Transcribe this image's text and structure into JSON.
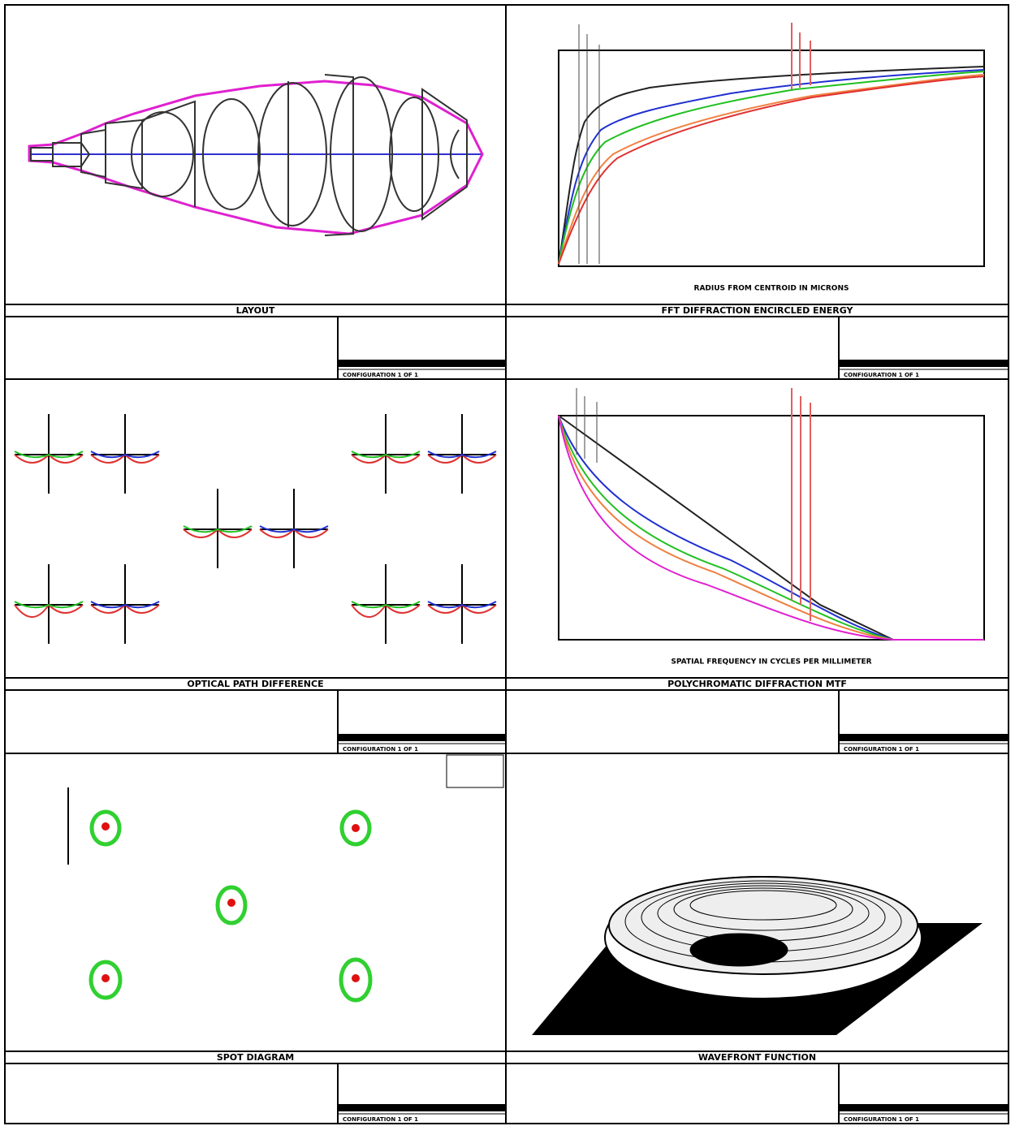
{
  "panels": [
    {
      "title": "LAYOUT",
      "config": "CONFIGURATION 1 OF 1"
    },
    {
      "title": "FFT DIFFRACTION ENCIRCLED ENERGY",
      "xlabel": "RADIUS FROM CENTROID IN MICRONS",
      "config": "CONFIGURATION 1 OF 1"
    },
    {
      "title": "OPTICAL PATH DIFFERENCE",
      "config": "CONFIGURATION 1 OF 1"
    },
    {
      "title": "POLYCHROMATIC DIFFRACTION MTF",
      "xlabel": "SPATIAL FREQUENCY IN CYCLES PER MILLIMETER",
      "config": "CONFIGURATION 1 OF 1"
    },
    {
      "title": "SPOT DIAGRAM",
      "config": "CONFIGURATION 1 OF 1"
    },
    {
      "title": "WAVEFRONT FUNCTION",
      "config": "CONFIGURATION 1 OF 1"
    }
  ]
}
